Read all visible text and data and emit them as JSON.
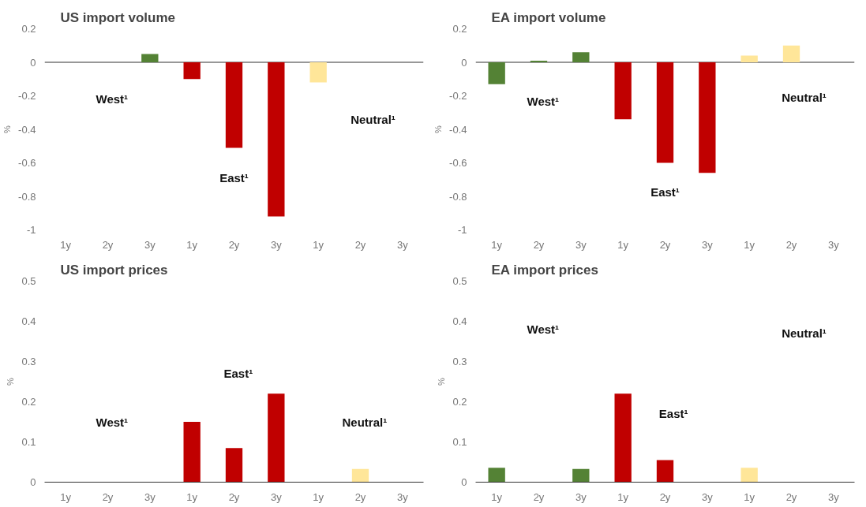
{
  "chart_data": [
    {
      "type": "bar",
      "title": "US import volume",
      "ylabel": "%",
      "categories": [
        "1y",
        "2y",
        "3y",
        "1y",
        "2y",
        "3y",
        "1y",
        "2y",
        "3y"
      ],
      "values": [
        0,
        0,
        0.05,
        -0.1,
        -0.51,
        -0.92,
        -0.12,
        0,
        0
      ],
      "colors": [
        "#548235",
        "#548235",
        "#548235",
        "#c00000",
        "#c00000",
        "#c00000",
        "#ffe699",
        "#ffe699",
        "#ffe699"
      ],
      "ylim": [
        -1,
        0.2
      ],
      "yticks": [
        -1,
        -0.8,
        -0.6,
        -0.4,
        -0.2,
        0,
        0.2
      ],
      "grid": false,
      "ref_lines": [
        {
          "axis": "y",
          "value": 0
        }
      ],
      "annotations": [
        "West¹",
        "East¹",
        "Neutral¹"
      ]
    },
    {
      "type": "bar",
      "title": "EA import volume",
      "ylabel": "%",
      "categories": [
        "1y",
        "2y",
        "3y",
        "1y",
        "2y",
        "3y",
        "1y",
        "2y",
        "3y"
      ],
      "values": [
        -0.13,
        0.01,
        0.06,
        -0.34,
        -0.6,
        -0.66,
        0.04,
        0.1,
        0
      ],
      "colors": [
        "#548235",
        "#548235",
        "#548235",
        "#c00000",
        "#c00000",
        "#c00000",
        "#ffe699",
        "#ffe699",
        "#ffe699"
      ],
      "ylim": [
        -1,
        0.2
      ],
      "yticks": [
        -1,
        -0.8,
        -0.6,
        -0.4,
        -0.2,
        0,
        0.2
      ],
      "grid": false,
      "ref_lines": [
        {
          "axis": "y",
          "value": 0
        }
      ],
      "annotations": [
        "West¹",
        "East¹",
        "Neutral¹"
      ]
    },
    {
      "type": "bar",
      "title": "US import prices",
      "ylabel": "%",
      "categories": [
        "1y",
        "2y",
        "3y",
        "1y",
        "2y",
        "3y",
        "1y",
        "2y",
        "3y"
      ],
      "values": [
        0,
        0,
        0,
        0.15,
        0.085,
        0.22,
        0,
        0.033,
        0
      ],
      "colors": [
        "#548235",
        "#548235",
        "#548235",
        "#c00000",
        "#c00000",
        "#c00000",
        "#ffe699",
        "#ffe699",
        "#ffe699"
      ],
      "ylim": [
        0,
        0.5
      ],
      "yticks": [
        0,
        0.1,
        0.2,
        0.3,
        0.4,
        0.5
      ],
      "grid": false,
      "annotations": [
        "East¹",
        "West¹",
        "Neutral¹"
      ]
    },
    {
      "type": "bar",
      "title": "EA import prices",
      "ylabel": "%",
      "categories": [
        "1y",
        "2y",
        "3y",
        "1y",
        "2y",
        "3y",
        "1y",
        "2y",
        "3y"
      ],
      "values": [
        0.036,
        0,
        0.033,
        0.22,
        0.055,
        0,
        0.036,
        0,
        0
      ],
      "colors": [
        "#548235",
        "#548235",
        "#548235",
        "#c00000",
        "#c00000",
        "#c00000",
        "#ffe699",
        "#ffe699",
        "#ffe699"
      ],
      "ylim": [
        0,
        0.5
      ],
      "yticks": [
        0,
        0.1,
        0.2,
        0.3,
        0.4,
        0.5
      ],
      "grid": false,
      "annotations": [
        "West¹",
        "Neutral¹",
        "East¹"
      ]
    }
  ]
}
